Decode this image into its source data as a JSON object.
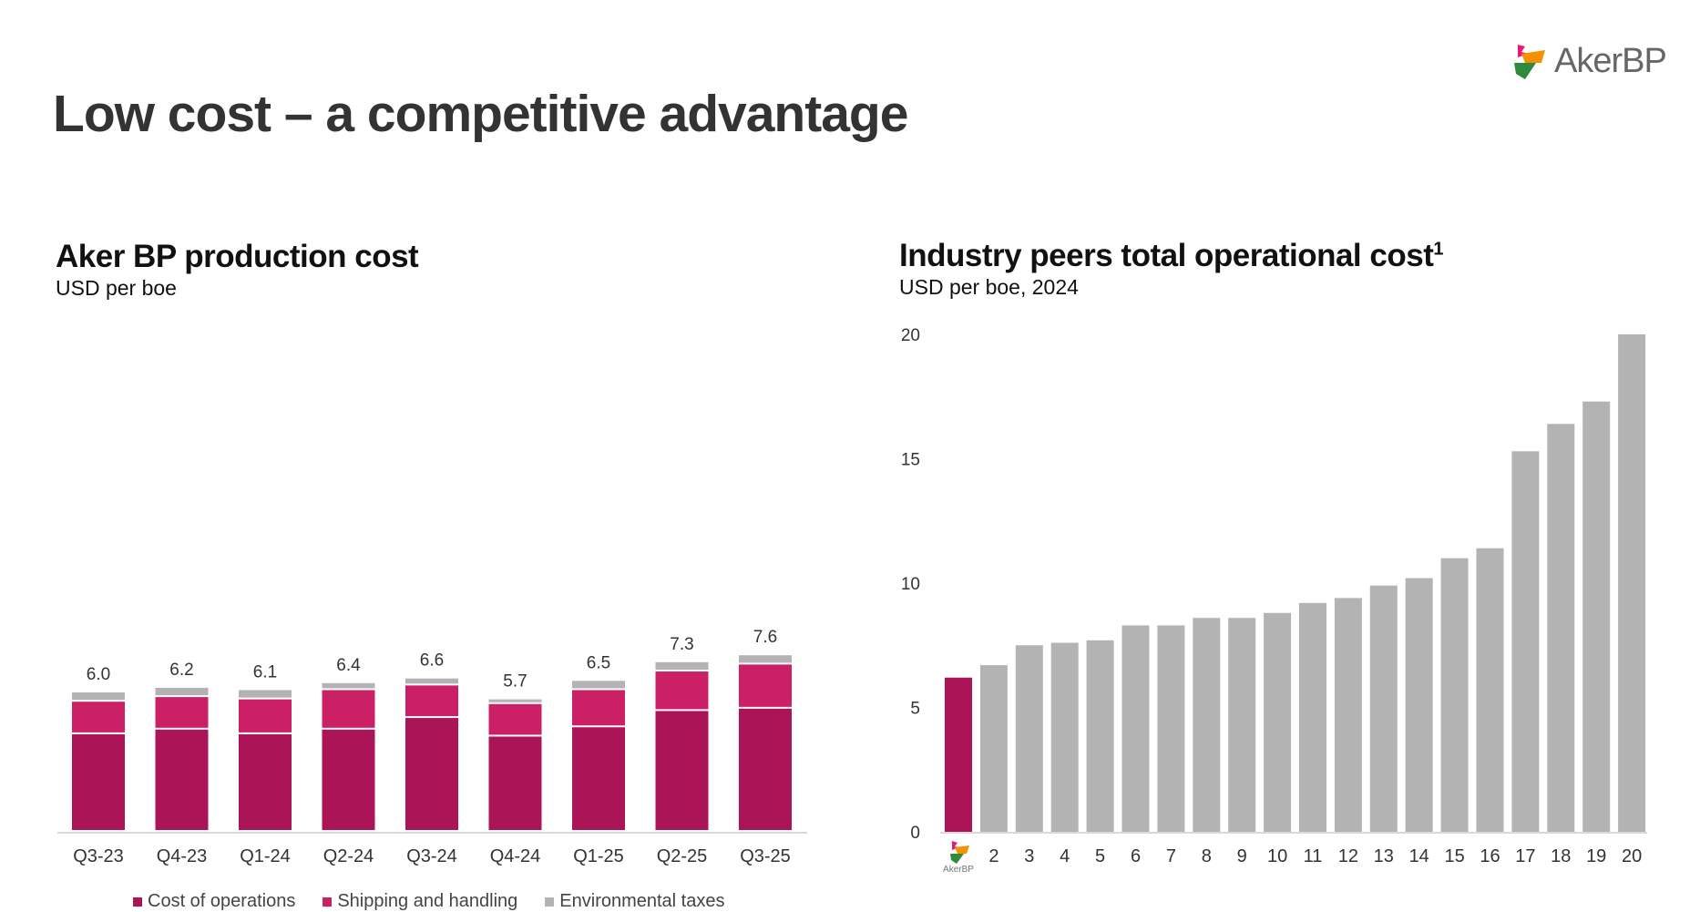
{
  "title": "Low cost – a competitive advantage",
  "logo": {
    "text": "AkerBP"
  },
  "chart_data": [
    {
      "type": "bar",
      "stacked": true,
      "title": "Aker BP production cost",
      "subtitle": "USD per boe",
      "categories": [
        "Q3-23",
        "Q4-23",
        "Q1-24",
        "Q2-24",
        "Q3-24",
        "Q4-24",
        "Q1-25",
        "Q2-25",
        "Q3-25"
      ],
      "series": [
        {
          "name": "Cost of operations",
          "color": "#ab1457",
          "values": [
            4.2,
            4.4,
            4.2,
            4.4,
            4.9,
            4.1,
            4.5,
            5.2,
            5.3
          ]
        },
        {
          "name": "Shipping and handling",
          "color": "#cc2066",
          "values": [
            1.4,
            1.4,
            1.5,
            1.7,
            1.4,
            1.4,
            1.6,
            1.7,
            1.9
          ]
        },
        {
          "name": "Environmental taxes",
          "color": "#b3b3b3",
          "values": [
            0.4,
            0.4,
            0.4,
            0.3,
            0.3,
            0.2,
            0.4,
            0.4,
            0.4
          ]
        }
      ],
      "totals": [
        "6.0",
        "6.2",
        "6.1",
        "6.4",
        "6.6",
        "5.7",
        "6.5",
        "7.3",
        "7.6"
      ],
      "legend_position": "bottom",
      "grid": false
    },
    {
      "type": "bar",
      "title": "Industry peers total operational cost",
      "title_superscript": "1",
      "subtitle": "USD per boe, 2024",
      "categories": [
        "AkerBP",
        "2",
        "3",
        "4",
        "5",
        "6",
        "7",
        "8",
        "9",
        "10",
        "11",
        "12",
        "13",
        "14",
        "15",
        "16",
        "17",
        "18",
        "19",
        "20"
      ],
      "values": [
        6.2,
        6.7,
        7.5,
        7.6,
        7.7,
        8.3,
        8.3,
        8.6,
        8.6,
        8.8,
        9.2,
        9.4,
        9.9,
        10.2,
        11.0,
        11.4,
        15.3,
        16.4,
        17.3,
        20.0
      ],
      "highlight_color": "#ab1457",
      "bar_color": "#b3b3b3",
      "yticks": [
        "0",
        "5",
        "10",
        "15",
        "20"
      ],
      "ylim": [
        0,
        20
      ],
      "grid": false
    }
  ]
}
